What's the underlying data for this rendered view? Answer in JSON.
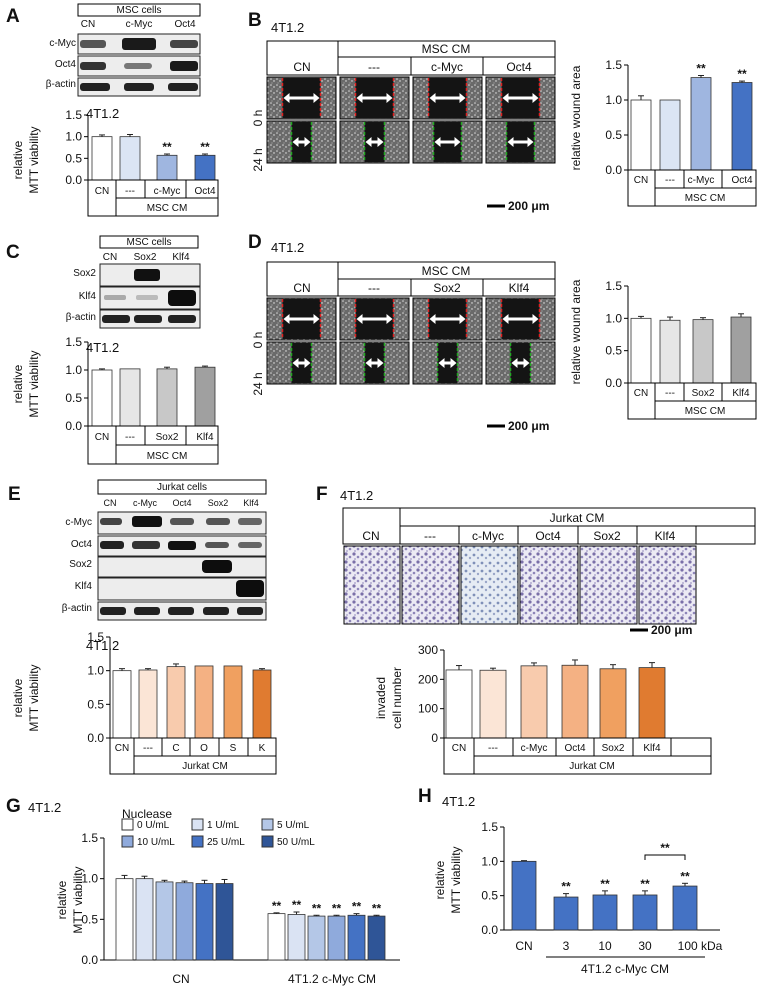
{
  "panels": {
    "A": {
      "label": "A",
      "header": "MSC  cells",
      "lanes": [
        "CN",
        "c-Myc",
        "Oct4"
      ],
      "blots": [
        "c-Myc",
        "Oct4",
        "β-actin"
      ],
      "chart_title": "4T1.2",
      "ylabel1": "relative",
      "ylabel2": "MTT viability",
      "yticks": [
        "0.0",
        "0.5",
        "1.0",
        "1.5"
      ],
      "group_label": "MSC CM"
    },
    "B": {
      "label": "B",
      "title": "4T1.2",
      "cm_header": "MSC CM",
      "cols": [
        "CN",
        "---",
        "c-Myc",
        "Oct4"
      ],
      "rows": [
        "0 h",
        "24 h"
      ],
      "scale": "200 μm",
      "ylabel": "relative wound area",
      "yticks": [
        "0.0",
        "0.5",
        "1.0",
        "1.5"
      ],
      "group_label": "MSC CM"
    },
    "C": {
      "label": "C",
      "header": "MSC  cells",
      "lanes": [
        "CN",
        "Sox2",
        "Klf4"
      ],
      "blots": [
        "Sox2",
        "Klf4",
        "β-actin"
      ],
      "chart_title": "4T1.2",
      "ylabel1": "relative",
      "ylabel2": "MTT viability",
      "yticks": [
        "0.0",
        "0.5",
        "1.0",
        "1.5"
      ],
      "group_label": "MSC CM"
    },
    "D": {
      "label": "D",
      "title": "4T1.2",
      "cm_header": "MSC CM",
      "cols": [
        "CN",
        "---",
        "Sox2",
        "Klf4"
      ],
      "rows": [
        "0 h",
        "24 h"
      ],
      "scale": "200 μm",
      "ylabel": "relative wound area",
      "yticks": [
        "0.0",
        "0.5",
        "1.0",
        "1.5"
      ],
      "group_label": "MSC CM"
    },
    "E": {
      "label": "E",
      "header": "Jurkat cells",
      "lanes": [
        "CN",
        "c-Myc",
        "Oct4",
        "Sox2",
        "Klf4"
      ],
      "blots": [
        "c-Myc",
        "Oct4",
        "Sox2",
        "Klf4",
        "β-actin"
      ],
      "chart_title": "4T1.2",
      "ylabel1": "relative",
      "ylabel2": "MTT viability",
      "yticks": [
        "0.0",
        "0.5",
        "1.0",
        "1.5"
      ],
      "group_label": "Jurkat CM"
    },
    "F": {
      "label": "F",
      "title": "4T1.2",
      "cm_header": "Jurkat  CM",
      "cols": [
        "CN",
        "---",
        "c-Myc",
        "Oct4",
        "Sox2",
        "Klf4"
      ],
      "scale": "200 μm",
      "ylabel1": "invaded",
      "ylabel2": "cell number",
      "yticks": [
        "0",
        "100",
        "200",
        "300"
      ],
      "group_label": "Jurkat CM"
    },
    "G": {
      "label": "G",
      "title": "4T1.2",
      "legend_title": "Nuclease",
      "legend": [
        "0   U/mL",
        "1   U/mL",
        "5   U/mL",
        "10 U/mL",
        "25 U/mL",
        "50 U/mL"
      ],
      "ylabel1": "relative",
      "ylabel2": "MTT viability",
      "yticks": [
        "0.0",
        "0.5",
        "1.0",
        "1.5"
      ],
      "groups": [
        "CN",
        "4T1.2 c-Myc CM"
      ]
    },
    "H": {
      "label": "H",
      "title": "4T1.2",
      "ylabel1": "relative",
      "ylabel2": "MTT viability",
      "yticks": [
        "0.0",
        "0.5",
        "1.0",
        "1.5"
      ],
      "xlabels": [
        "CN",
        "3",
        "10",
        "30",
        "100 kDa"
      ],
      "group_label": "4T1.2 c-Myc CM",
      "bracket_label": "**"
    }
  },
  "chart_data": [
    {
      "id": "A",
      "type": "bar",
      "title": "4T1.2",
      "ylabel": "relative MTT viability",
      "ylim": [
        0,
        1.5
      ],
      "categories": [
        "CN",
        "---",
        "c-Myc",
        "Oct4"
      ],
      "values": [
        1.0,
        1.0,
        0.57,
        0.57
      ],
      "errors": [
        0.04,
        0.05,
        0.03,
        0.03
      ],
      "significance": [
        "",
        "",
        "**",
        "**"
      ],
      "colors": [
        "#ffffff",
        "#dbe5f4",
        "#9fb6e0",
        "#4472c4"
      ]
    },
    {
      "id": "B",
      "type": "bar",
      "title": "relative wound area",
      "ylabel": "relative wound area",
      "ylim": [
        0,
        1.5
      ],
      "categories": [
        "CN",
        "---",
        "c-Myc",
        "Oct4"
      ],
      "values": [
        1.0,
        1.0,
        1.32,
        1.25
      ],
      "errors": [
        0.06,
        0.0,
        0.03,
        0.02
      ],
      "significance": [
        "",
        "",
        "**",
        "**"
      ],
      "colors": [
        "#ffffff",
        "#dbe5f4",
        "#9fb6e0",
        "#4472c4"
      ]
    },
    {
      "id": "C",
      "type": "bar",
      "title": "4T1.2",
      "ylabel": "relative MTT viability",
      "ylim": [
        0,
        1.5
      ],
      "categories": [
        "CN",
        "---",
        "Sox2",
        "Klf4"
      ],
      "values": [
        1.0,
        1.02,
        1.02,
        1.05
      ],
      "errors": [
        0.02,
        0.0,
        0.03,
        0.02
      ],
      "significance": [
        "",
        "",
        "",
        ""
      ],
      "colors": [
        "#ffffff",
        "#e6e6e6",
        "#c8c8c8",
        "#a0a0a0"
      ]
    },
    {
      "id": "D",
      "type": "bar",
      "title": "relative wound area",
      "ylabel": "relative wound area",
      "ylim": [
        0,
        1.5
      ],
      "categories": [
        "CN",
        "---",
        "Sox2",
        "Klf4"
      ],
      "values": [
        1.0,
        0.97,
        0.98,
        1.02
      ],
      "errors": [
        0.03,
        0.05,
        0.03,
        0.05
      ],
      "significance": [
        "",
        "",
        "",
        ""
      ],
      "colors": [
        "#ffffff",
        "#e6e6e6",
        "#c8c8c8",
        "#a0a0a0"
      ]
    },
    {
      "id": "E",
      "type": "bar",
      "title": "4T1.2",
      "ylabel": "relative MTT viability",
      "ylim": [
        0,
        1.5
      ],
      "categories": [
        "CN",
        "---",
        "C",
        "O",
        "S",
        "K"
      ],
      "values": [
        1.0,
        1.01,
        1.06,
        1.07,
        1.07,
        1.01
      ],
      "errors": [
        0.03,
        0.02,
        0.04,
        0.0,
        0.0,
        0.02
      ],
      "significance": [
        "",
        "",
        "",
        "",
        "",
        ""
      ],
      "colors": [
        "#ffffff",
        "#fbe5d6",
        "#f8cbad",
        "#f4b183",
        "#f0a060",
        "#e07b30"
      ]
    },
    {
      "id": "F",
      "type": "bar",
      "title": "invaded cell number",
      "ylabel": "invaded cell number",
      "ylim": [
        0,
        300
      ],
      "categories": [
        "CN",
        "---",
        "c-Myc",
        "Oct4",
        "Sox2",
        "Klf4"
      ],
      "values": [
        232,
        231,
        246,
        248,
        236,
        240
      ],
      "errors": [
        15,
        7,
        10,
        18,
        14,
        17
      ],
      "significance": [
        "",
        "",
        "",
        "",
        "",
        ""
      ],
      "colors": [
        "#ffffff",
        "#fbe5d6",
        "#f8cbad",
        "#f4b183",
        "#f0a060",
        "#e07b30"
      ]
    },
    {
      "id": "G",
      "type": "bar",
      "title": "4T1.2",
      "ylabel": "relative MTT viability",
      "ylim": [
        0,
        1.5
      ],
      "categories": [
        "CN",
        "4T1.2 c-Myc CM"
      ],
      "series": [
        {
          "name": "0 U/mL",
          "values": [
            1.0,
            0.57
          ],
          "errors": [
            0.04,
            0.01
          ],
          "color": "#ffffff"
        },
        {
          "name": "1 U/mL",
          "values": [
            1.0,
            0.56
          ],
          "errors": [
            0.03,
            0.03
          ],
          "color": "#dae3f3"
        },
        {
          "name": "5 U/mL",
          "values": [
            0.96,
            0.54
          ],
          "errors": [
            0.02,
            0.01
          ],
          "color": "#b4c7e7"
        },
        {
          "name": "10 U/mL",
          "values": [
            0.95,
            0.54
          ],
          "errors": [
            0.02,
            0.01
          ],
          "color": "#8faadc"
        },
        {
          "name": "25 U/mL",
          "values": [
            0.94,
            0.55
          ],
          "errors": [
            0.04,
            0.02
          ],
          "color": "#4472c4"
        },
        {
          "name": "50 U/mL",
          "values": [
            0.94,
            0.54
          ],
          "errors": [
            0.05,
            0.01
          ],
          "color": "#2f5597"
        }
      ],
      "significance": [
        "",
        "**"
      ]
    },
    {
      "id": "H",
      "type": "bar",
      "title": "4T1.2",
      "ylabel": "relative MTT viability",
      "ylim": [
        0,
        1.5
      ],
      "categories": [
        "CN",
        "3",
        "10",
        "30",
        "100 kDa"
      ],
      "values": [
        1.0,
        0.48,
        0.51,
        0.51,
        0.64
      ],
      "errors": [
        0.01,
        0.05,
        0.06,
        0.06,
        0.04
      ],
      "significance": [
        "",
        "**",
        "**",
        "**",
        "**"
      ],
      "colors": [
        "#4472c4",
        "#4472c4",
        "#4472c4",
        "#4472c4",
        "#4472c4"
      ]
    }
  ]
}
